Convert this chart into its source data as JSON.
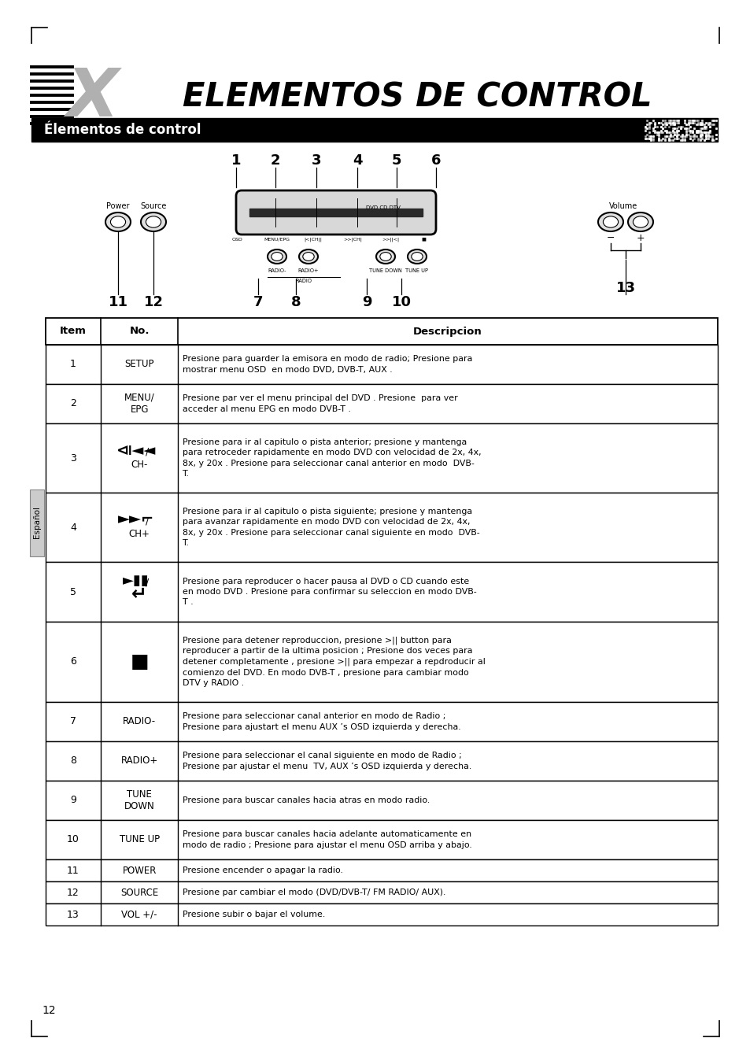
{
  "title": "ELEMENTOS DE CONTROL",
  "section_header": "Élementos de control",
  "page_number": "12",
  "table_headers": [
    "Item",
    "No.",
    "Descripcion"
  ],
  "table_rows": [
    {
      "item": "1",
      "no": "SETUP",
      "desc": "Presione para guarder la emisora en modo de radio; Presione para\nmostrar menu OSD  en modo DVD, DVB-T, AUX ."
    },
    {
      "item": "2",
      "no": "MENU/\nEPG",
      "desc": "Presione par ver el menu principal del DVD . Presione  para ver\nacceder al menu EPG en modo DVB-T ."
    },
    {
      "item": "3",
      "no": "symbol_prev",
      "desc": "Presione para ir al capitulo o pista anterior; presione y mantenga\npara retroceder rapidamente en modo DVD con velocidad de 2x, 4x,\n8x, y 20x . Presione para seleccionar canal anterior en modo  DVB-\nT."
    },
    {
      "item": "4",
      "no": "symbol_next",
      "desc": "Presione para ir al capitulo o pista siguiente; presione y mantenga\npara avanzar rapidamente en modo DVD con velocidad de 2x, 4x,\n8x, y 20x . Presione para seleccionar canal siguiente en modo  DVB-\nT."
    },
    {
      "item": "5",
      "no": "symbol_play",
      "desc": "Presione para reproducer o hacer pausa al DVD o CD cuando este\nen modo DVD . Presione para confirmar su seleccion en modo DVB-\nT ."
    },
    {
      "item": "6",
      "no": "symbol_stop",
      "desc": "Presione para detener reproduccion, presione >|| button para\nreproducer a partir de la ultima posicion ; Presione dos veces para\ndetener completamente , presione >|| para empezar a repdroducir al\ncomienzo del DVD. En modo DVB-T , presione para cambiar modo\nDTV y RADIO ."
    },
    {
      "item": "7",
      "no": "RADIO-",
      "desc": "Presione para seleccionar canal anterior en modo de Radio ;\nPresione para ajustart el menu AUX ’s OSD izquierda y derecha."
    },
    {
      "item": "8",
      "no": "RADIO+",
      "desc": "Presione para seleccionar el canal siguiente en modo de Radio ;\nPresione par ajustar el menu  TV, AUX ’s OSD izquierda y derecha."
    },
    {
      "item": "9",
      "no": "TUNE\nDOWN",
      "desc": "Presione para buscar canales hacia atras en modo radio."
    },
    {
      "item": "10",
      "no": "TUNE UP",
      "desc": "Presione para buscar canales hacia adelante automaticamente en\nmodo de radio ; Presione para ajustar el menu OSD arriba y abajo."
    },
    {
      "item": "11",
      "no": "POWER",
      "desc": "Presione encender o apagar la radio."
    },
    {
      "item": "12",
      "no": "SOURCE",
      "desc": "Presione par cambiar el modo (DVD/DVB-T/ FM RADIO/ AUX)."
    },
    {
      "item": "13",
      "no": "VOL +/-",
      "desc": "Presione subir o bajar el volume."
    }
  ],
  "background_color": "#ffffff",
  "header_bg": "#000000",
  "header_fg": "#ffffff",
  "table_border_color": "#000000",
  "side_label": "Español"
}
